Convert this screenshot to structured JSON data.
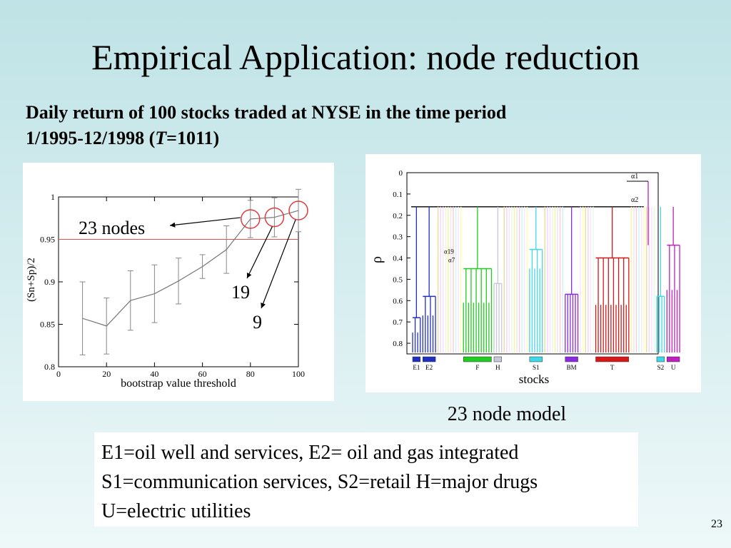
{
  "slide": {
    "title": "Empirical Application: node reduction",
    "subtitle_line1": "Daily return of 100 stocks traded at NYSE in the time period",
    "subtitle_line2_pre": "1/1995-12/1998 (",
    "subtitle_line2_T": "T",
    "subtitle_line2_post": "=1011)",
    "caption": "23 node model",
    "legend_lines": [
      "E1=oil well and services, E2= oil and gas integrated",
      "S1=communication services, S2=retail H=major drugs",
      "U=electric utilities"
    ],
    "page_number": "23"
  },
  "chart_data": [
    {
      "type": "line",
      "xlabel": "bootstrap value threshold",
      "ylabel": "(Sn+Sp)/2",
      "xlim": [
        0,
        100
      ],
      "ylim": [
        0.8,
        1.0
      ],
      "xticks": [
        "0",
        "20",
        "40",
        "60",
        "80",
        "100"
      ],
      "yticks": [
        "0.8",
        "0.85",
        "0.9",
        "0.95",
        "1"
      ],
      "x": [
        10,
        20,
        30,
        40,
        50,
        60,
        70,
        80,
        90,
        100
      ],
      "y": [
        0.857,
        0.848,
        0.878,
        0.886,
        0.901,
        0.918,
        0.938,
        0.974,
        0.976,
        0.984
      ],
      "err": [
        0.043,
        0.033,
        0.035,
        0.034,
        0.027,
        0.014,
        0.028,
        0.022,
        0.023,
        0.025
      ],
      "reference_line": 0.95,
      "reference_color": "#e8504a",
      "line_color": "#777777",
      "circle_color": "#e03a3a",
      "annotations": [
        {
          "text": "23 nodes",
          "x": 80
        },
        {
          "text": "19",
          "x": 90
        },
        {
          "text": "9",
          "x": 100
        }
      ]
    },
    {
      "type": "dendrogram",
      "xlabel": "stocks",
      "ylabel": "ρ",
      "ylim": [
        0,
        0.85
      ],
      "yticks": [
        "0",
        "0.1",
        "0.2",
        "0.3",
        "0.4",
        "0.5",
        "0.6",
        "0.7",
        "0.8"
      ],
      "cut_level": 0.16,
      "alpha_labels": [
        "α1",
        "α2",
        "α19",
        "α7"
      ],
      "groups": [
        {
          "label": "E1",
          "color": "#1f2fbf",
          "n": 2,
          "merge": [
            0.75,
            0.68
          ]
        },
        {
          "label": "E2",
          "color": "#1f2fbf",
          "n": 3,
          "merge": [
            0.67,
            0.58
          ]
        },
        {
          "label": "F",
          "color": "#1fcc1f",
          "n": 6,
          "merge": [
            0.61,
            0.45
          ]
        },
        {
          "label": "H",
          "color": "#c8c8d8",
          "n": 2,
          "merge": [
            0.52
          ]
        },
        {
          "label": "S1",
          "color": "#3fd8e8",
          "n": 3,
          "merge": [
            0.45,
            0.36
          ]
        },
        {
          "label": "BM",
          "color": "#8a2be2",
          "n": 3,
          "merge": [
            0.57
          ]
        },
        {
          "label": "T",
          "color": "#d81818",
          "n": 7,
          "merge": [
            0.62,
            0.4
          ]
        },
        {
          "label": "S2",
          "color": "#3fd8e8",
          "n": 2,
          "merge": [
            0.58
          ]
        },
        {
          "label": "U",
          "color": "#c020c0",
          "n": 3,
          "merge": [
            0.55,
            0.34
          ]
        }
      ]
    }
  ]
}
